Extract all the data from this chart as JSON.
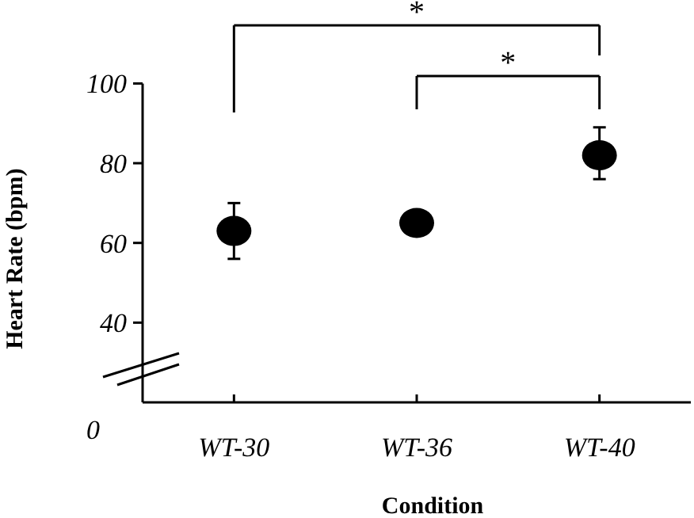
{
  "chart_data": {
    "type": "scatter",
    "xlabel": "Condition",
    "ylabel": "Heart Rate (bpm)",
    "categories": [
      "WT-30",
      "WT-36",
      "WT-40"
    ],
    "values": [
      63,
      65,
      82
    ],
    "color": "#000000",
    "errors": [
      [
        56,
        70
      ],
      null,
      [
        76,
        89
      ]
    ],
    "ylim": [
      20,
      100
    ],
    "yticks": [
      40,
      60,
      80,
      100
    ],
    "marker": "circle",
    "grid": false,
    "annotations": [
      "*",
      "*",
      "0"
    ]
  }
}
